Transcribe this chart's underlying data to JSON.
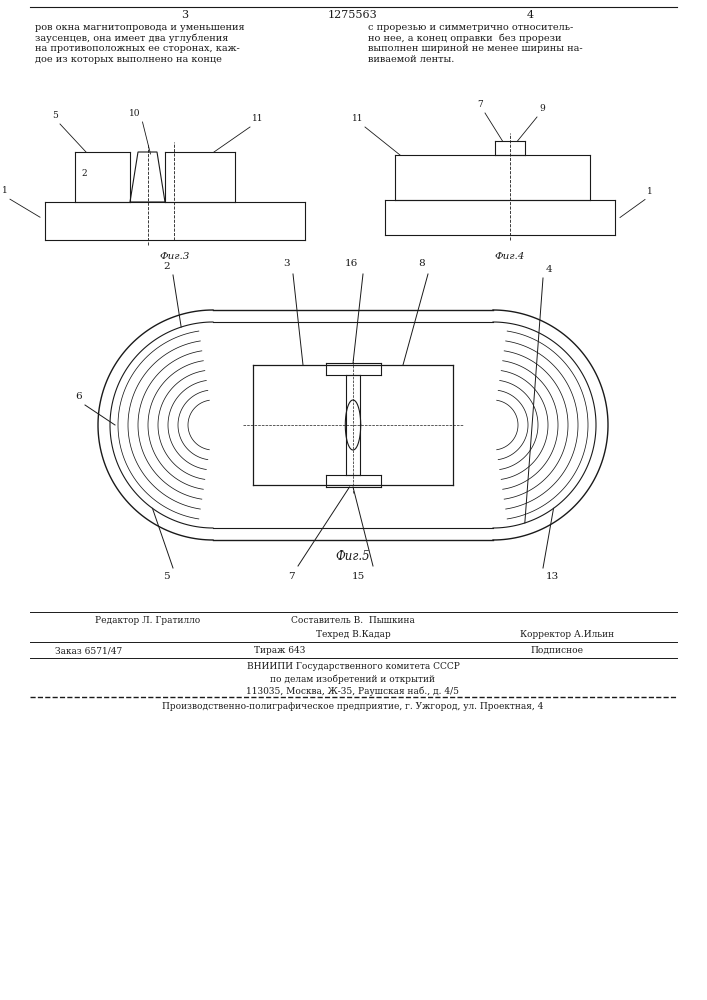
{
  "bg_color": "#ffffff",
  "page_color": "#ffffff",
  "line_color": "#1a1a1a",
  "text_color": "#1a1a1a",
  "header_num": "1275563",
  "page_left": "3",
  "page_right": "4",
  "text_left": "ров окна магнитопровода и уменьшения\nзаусенцев, она имеет два углубления\nна противоположных ее сторонах, каж-\nдое из которых выполнено на конце",
  "text_right": "с прорезью и симметрично относитель-\nно нее, а конец оправки  без прорези\nвыполнен шириной не менее ширины на-\nвиваемой ленты.",
  "fig3_caption": "Фиг.3",
  "fig4_caption": "Фиг.4",
  "fig5_caption": "Фиг.5",
  "footer_editor": "Редактор Л. Гратилло",
  "footer_composer": "Составитель В.  Пышкина",
  "footer_techred": "Техред В.Кадар",
  "footer_corrector": "Корректор А.Ильин",
  "footer_order": "Заказ 6571/47",
  "footer_tirazh": "Тираж 643",
  "footer_podpis": "Подписное",
  "footer_vniipи": "ВНИИПИ Государственного комитета СССР",
  "footer_line5": "по делам изобретений и открытий",
  "footer_line6": "113035, Москва, Ж-35, Раушская наб., д. 4/5",
  "footer_line7": "Производственно-полиграфическое предприятие, г. Ужгород, ул. Проектная, 4"
}
